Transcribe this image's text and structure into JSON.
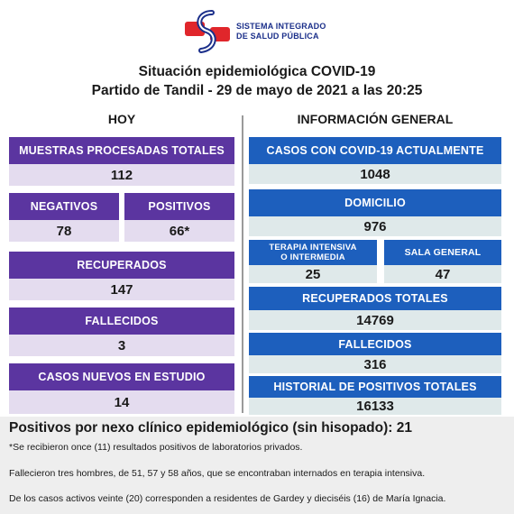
{
  "header": {
    "logo_line1": "SISTEMA INTEGRADO",
    "logo_line2": "DE SALUD PÚBLICA",
    "title_line1": "Situación epidemiológica COVID-19",
    "title_line2": "Partido de Tandil - 29 de mayo de 2021 a las 20:25",
    "colors": {
      "logo_red": "#e0262b",
      "logo_blue": "#1b2f8a"
    }
  },
  "hoy": {
    "heading": "HOY",
    "muestras": {
      "label": "MUESTRAS PROCESADAS TOTALES",
      "value": "112"
    },
    "negativos": {
      "label": "NEGATIVOS",
      "value": "78"
    },
    "positivos": {
      "label": "POSITIVOS",
      "value": "66*"
    },
    "recuperados": {
      "label": "RECUPERADOS",
      "value": "147"
    },
    "fallecidos": {
      "label": "FALLECIDOS",
      "value": "3"
    },
    "casos_nuevos": {
      "label": "CASOS NUEVOS EN ESTUDIO",
      "value": "14"
    }
  },
  "general": {
    "heading": "INFORMACIÓN GENERAL",
    "activos": {
      "label": "CASOS CON COVID-19 ACTUALMENTE",
      "value": "1048"
    },
    "domicilio": {
      "label": "DOMICILIO",
      "value": "976"
    },
    "terapia": {
      "label_line1": "TERAPIA INTENSIVA",
      "label_line2": "O INTERMEDIA",
      "value": "25"
    },
    "sala": {
      "label": "SALA GENERAL",
      "value": "47"
    },
    "recuperados_totales": {
      "label": "RECUPERADOS TOTALES",
      "value": "14769"
    },
    "fallecidos": {
      "label": "FALLECIDOS",
      "value": "316"
    },
    "historial": {
      "label": "HISTORIAL DE POSITIVOS TOTALES",
      "value": "16133"
    }
  },
  "footer": {
    "headline": "Positivos por nexo clínico epidemiológico (sin hisopado): 21",
    "note1": "*Se recibieron once (11) resultados positivos de laboratorios privados.",
    "note2": "Fallecieron tres hombres, de 51, 57 y 58 años, que se  encontraban internados en terapia intensiva.",
    "note3": "De los casos activos veinte (20) corresponden a residentes de Gardey y dieciséis (16) de María Ignacia."
  },
  "colors": {
    "purple": "#5b35a0",
    "lavender": "#e4dcef",
    "blue": "#1d5fbd",
    "pale_teal": "#dfe9ea"
  }
}
